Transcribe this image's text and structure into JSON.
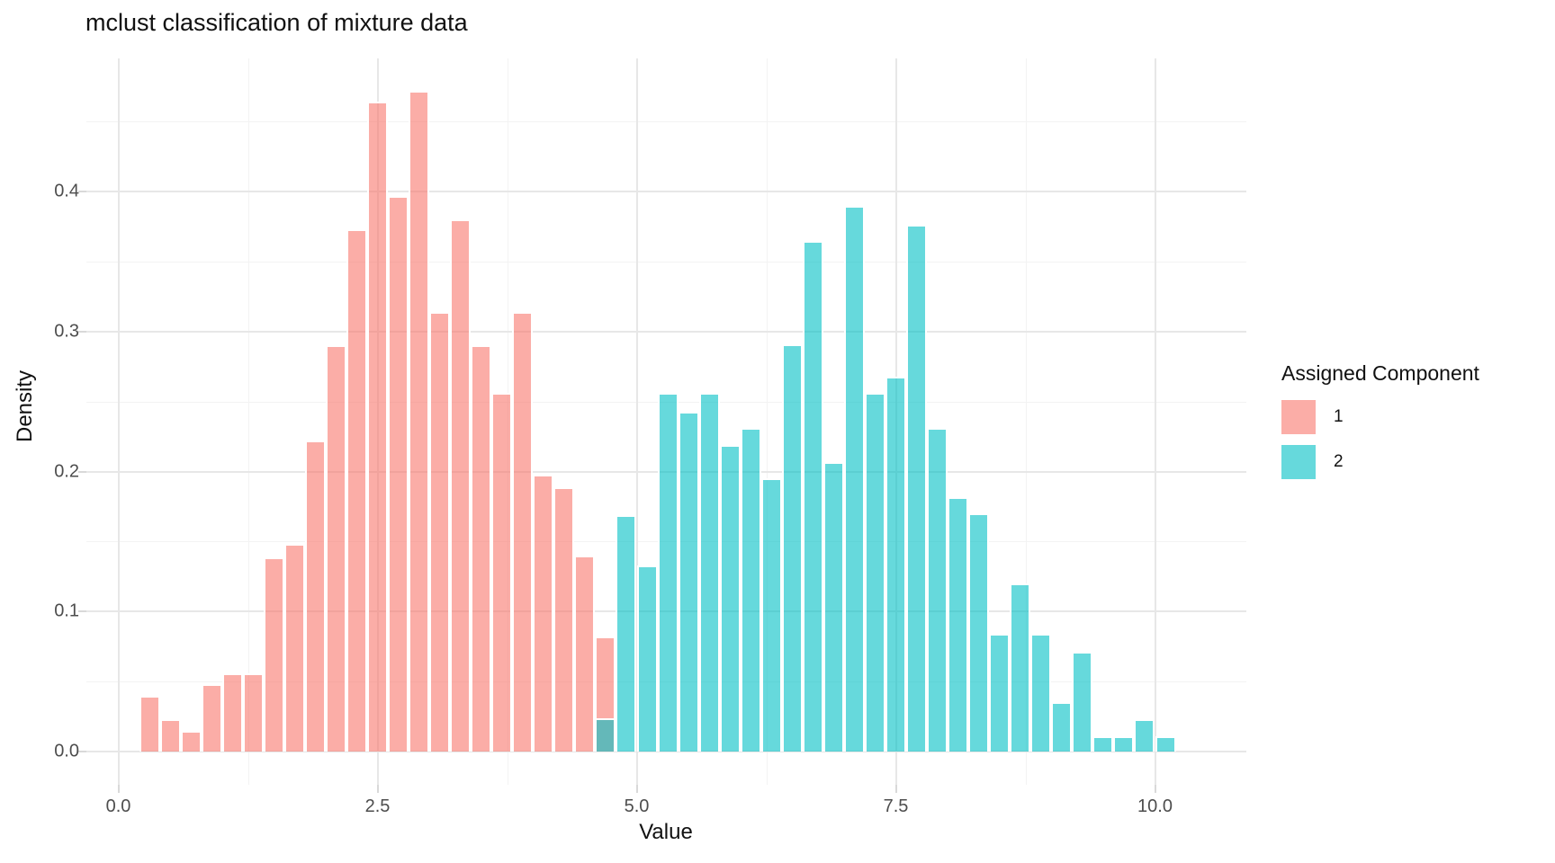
{
  "title": "mclust classification of mixture data",
  "axes": {
    "x": {
      "label": "Value",
      "tick_labels": [
        "0.0",
        "2.5",
        "5.0",
        "7.5",
        "10.0"
      ],
      "tick_values": [
        0,
        2.5,
        5,
        7.5,
        10
      ],
      "minor_values": [
        1.25,
        3.75,
        6.25,
        8.75
      ]
    },
    "y": {
      "label": "Density",
      "tick_labels": [
        "0.0",
        "0.1",
        "0.2",
        "0.3",
        "0.4"
      ],
      "tick_values": [
        0,
        0.1,
        0.2,
        0.3,
        0.4
      ],
      "minor_values": [
        0.05,
        0.15,
        0.25,
        0.35,
        0.45
      ]
    }
  },
  "legend": {
    "title": "Assigned Component",
    "items": [
      {
        "label": "1",
        "color": "#F8766D"
      },
      {
        "label": "2",
        "color": "#00BFC4"
      }
    ]
  },
  "colors": {
    "component1": "#F8766D",
    "component2": "#00BFC4",
    "fill_alpha": 0.6,
    "grid_major": "#e7e7e7",
    "grid_minor": "#f3f3f3",
    "tick_mark": "#d9d9d9",
    "tick_label": "#4d4d4d",
    "text": "#111111"
  },
  "chart_data": {
    "type": "bar",
    "subtype": "histogram",
    "title": "mclust classification of mixture data",
    "xlabel": "Value",
    "ylabel": "Density",
    "xlim": [
      -0.31,
      10.9
    ],
    "ylim": [
      0,
      0.5
    ],
    "grid": true,
    "legend_position": "right",
    "binwidth": 0.2,
    "note": "stacked-identity histogram; bin at 4.6 contains both components (blended overlap at its base)",
    "series": [
      {
        "name": "1",
        "bins": [
          {
            "start": 0.2,
            "density": 0.04
          },
          {
            "start": 0.4,
            "density": 0.023
          },
          {
            "start": 0.6,
            "density": 0.015
          },
          {
            "start": 0.8,
            "density": 0.048
          },
          {
            "start": 1.0,
            "density": 0.056
          },
          {
            "start": 1.2,
            "density": 0.056
          },
          {
            "start": 1.4,
            "density": 0.139
          },
          {
            "start": 1.6,
            "density": 0.148
          },
          {
            "start": 1.8,
            "density": 0.222
          },
          {
            "start": 2.0,
            "density": 0.29
          },
          {
            "start": 2.2,
            "density": 0.373
          },
          {
            "start": 2.4,
            "density": 0.464
          },
          {
            "start": 2.6,
            "density": 0.397
          },
          {
            "start": 2.8,
            "density": 0.472
          },
          {
            "start": 3.0,
            "density": 0.314
          },
          {
            "start": 3.2,
            "density": 0.38
          },
          {
            "start": 3.4,
            "density": 0.29
          },
          {
            "start": 3.6,
            "density": 0.256
          },
          {
            "start": 3.8,
            "density": 0.314
          },
          {
            "start": 4.0,
            "density": 0.198
          },
          {
            "start": 4.2,
            "density": 0.189
          },
          {
            "start": 4.4,
            "density": 0.14
          },
          {
            "start": 4.6,
            "density": 0.082
          }
        ]
      },
      {
        "name": "2",
        "bins": [
          {
            "start": 4.6,
            "density": 0.024
          },
          {
            "start": 4.8,
            "density": 0.169
          },
          {
            "start": 5.0,
            "density": 0.133
          },
          {
            "start": 5.2,
            "density": 0.256
          },
          {
            "start": 5.4,
            "density": 0.243
          },
          {
            "start": 5.6,
            "density": 0.256
          },
          {
            "start": 5.8,
            "density": 0.219
          },
          {
            "start": 6.0,
            "density": 0.231
          },
          {
            "start": 6.2,
            "density": 0.195
          },
          {
            "start": 6.4,
            "density": 0.291
          },
          {
            "start": 6.6,
            "density": 0.365
          },
          {
            "start": 6.8,
            "density": 0.207
          },
          {
            "start": 7.0,
            "density": 0.39
          },
          {
            "start": 7.2,
            "density": 0.256
          },
          {
            "start": 7.4,
            "density": 0.268
          },
          {
            "start": 7.6,
            "density": 0.376
          },
          {
            "start": 7.8,
            "density": 0.231
          },
          {
            "start": 8.0,
            "density": 0.182
          },
          {
            "start": 8.2,
            "density": 0.17
          },
          {
            "start": 8.4,
            "density": 0.084
          },
          {
            "start": 8.6,
            "density": 0.12
          },
          {
            "start": 8.8,
            "density": 0.084
          },
          {
            "start": 9.0,
            "density": 0.035
          },
          {
            "start": 9.2,
            "density": 0.071
          },
          {
            "start": 9.4,
            "density": 0.011
          },
          {
            "start": 9.6,
            "density": 0.011
          },
          {
            "start": 9.8,
            "density": 0.023
          },
          {
            "start": 10.0,
            "density": 0.011
          }
        ]
      }
    ]
  }
}
